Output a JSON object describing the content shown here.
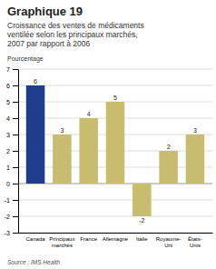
{
  "chart_data": {
    "type": "bar",
    "title": "Graphique 19",
    "subtitle": "Croissance des ventes de médicaments\nventilée selon les principaux marchés,\n2007 par rapport à 2006",
    "ylabel": "Pourcentage",
    "source": "Source : IMS Health",
    "categories": [
      "Canada",
      "Principaux\nmarchés",
      "France",
      "Allemagne",
      "Italie",
      "Royaume-\nUni",
      "États-\nUnis"
    ],
    "values": [
      6,
      3,
      4,
      5,
      -2,
      2,
      3
    ],
    "colors": [
      "#1f3c8c",
      "#c8bc6e",
      "#c8bc6e",
      "#c8bc6e",
      "#c8bc6e",
      "#c8bc6e",
      "#c8bc6e"
    ],
    "ylim": [
      -3,
      7
    ],
    "yticks": [
      -3,
      -2,
      -1,
      0,
      1,
      2,
      3,
      4,
      5,
      6,
      7
    ],
    "grid": true,
    "data_labels": true
  }
}
